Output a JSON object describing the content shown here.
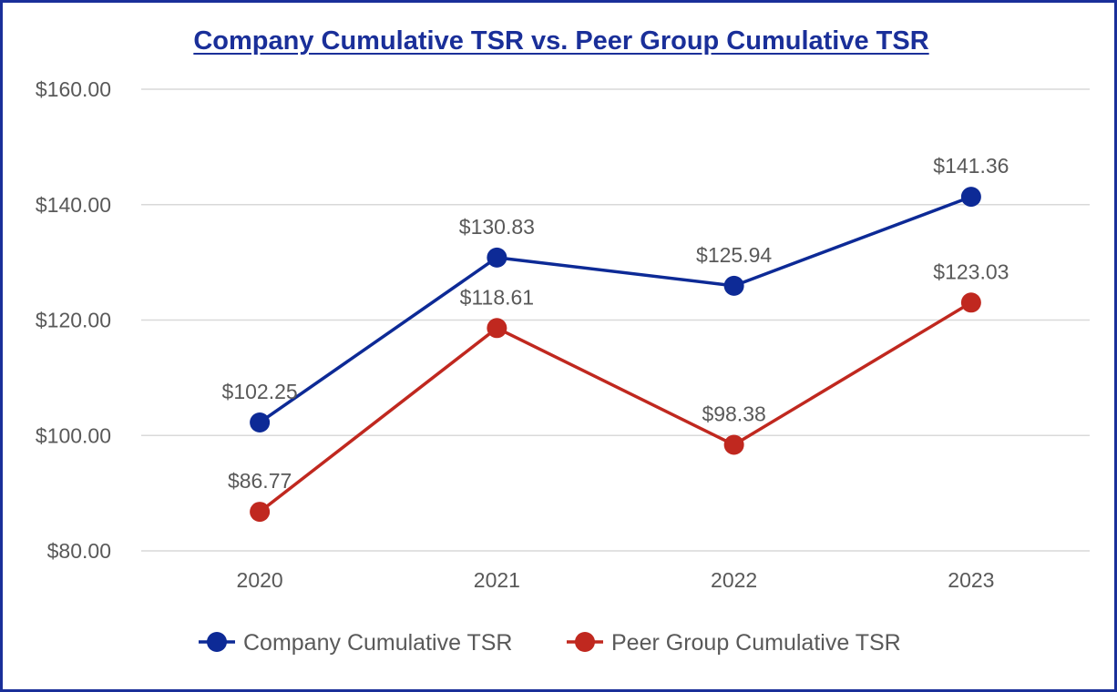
{
  "chart_data": {
    "type": "line",
    "title": "Company Cumulative TSR vs. Peer Group Cumulative TSR",
    "categories": [
      "2020",
      "2021",
      "2022",
      "2023"
    ],
    "y_tick_labels": [
      "$160.00",
      "$140.00",
      "$120.00",
      "$100.00",
      "$80.00"
    ],
    "y_ticks": [
      160,
      140,
      120,
      100,
      80
    ],
    "ylim": [
      80,
      160
    ],
    "grid": "horizontal",
    "legend_position": "bottom",
    "series": [
      {
        "name": "Company Cumulative TSR",
        "values": [
          102.25,
          130.83,
          125.94,
          141.36
        ],
        "labels": [
          "$102.25",
          "$130.83",
          "$125.94",
          "$141.36"
        ],
        "color": "#0d2a96"
      },
      {
        "name": "Peer Group Cumulative TSR",
        "values": [
          86.77,
          118.61,
          98.38,
          123.03
        ],
        "labels": [
          "$86.77",
          "$118.61",
          "$98.38",
          "$123.03"
        ],
        "color": "#c0281f"
      }
    ]
  }
}
